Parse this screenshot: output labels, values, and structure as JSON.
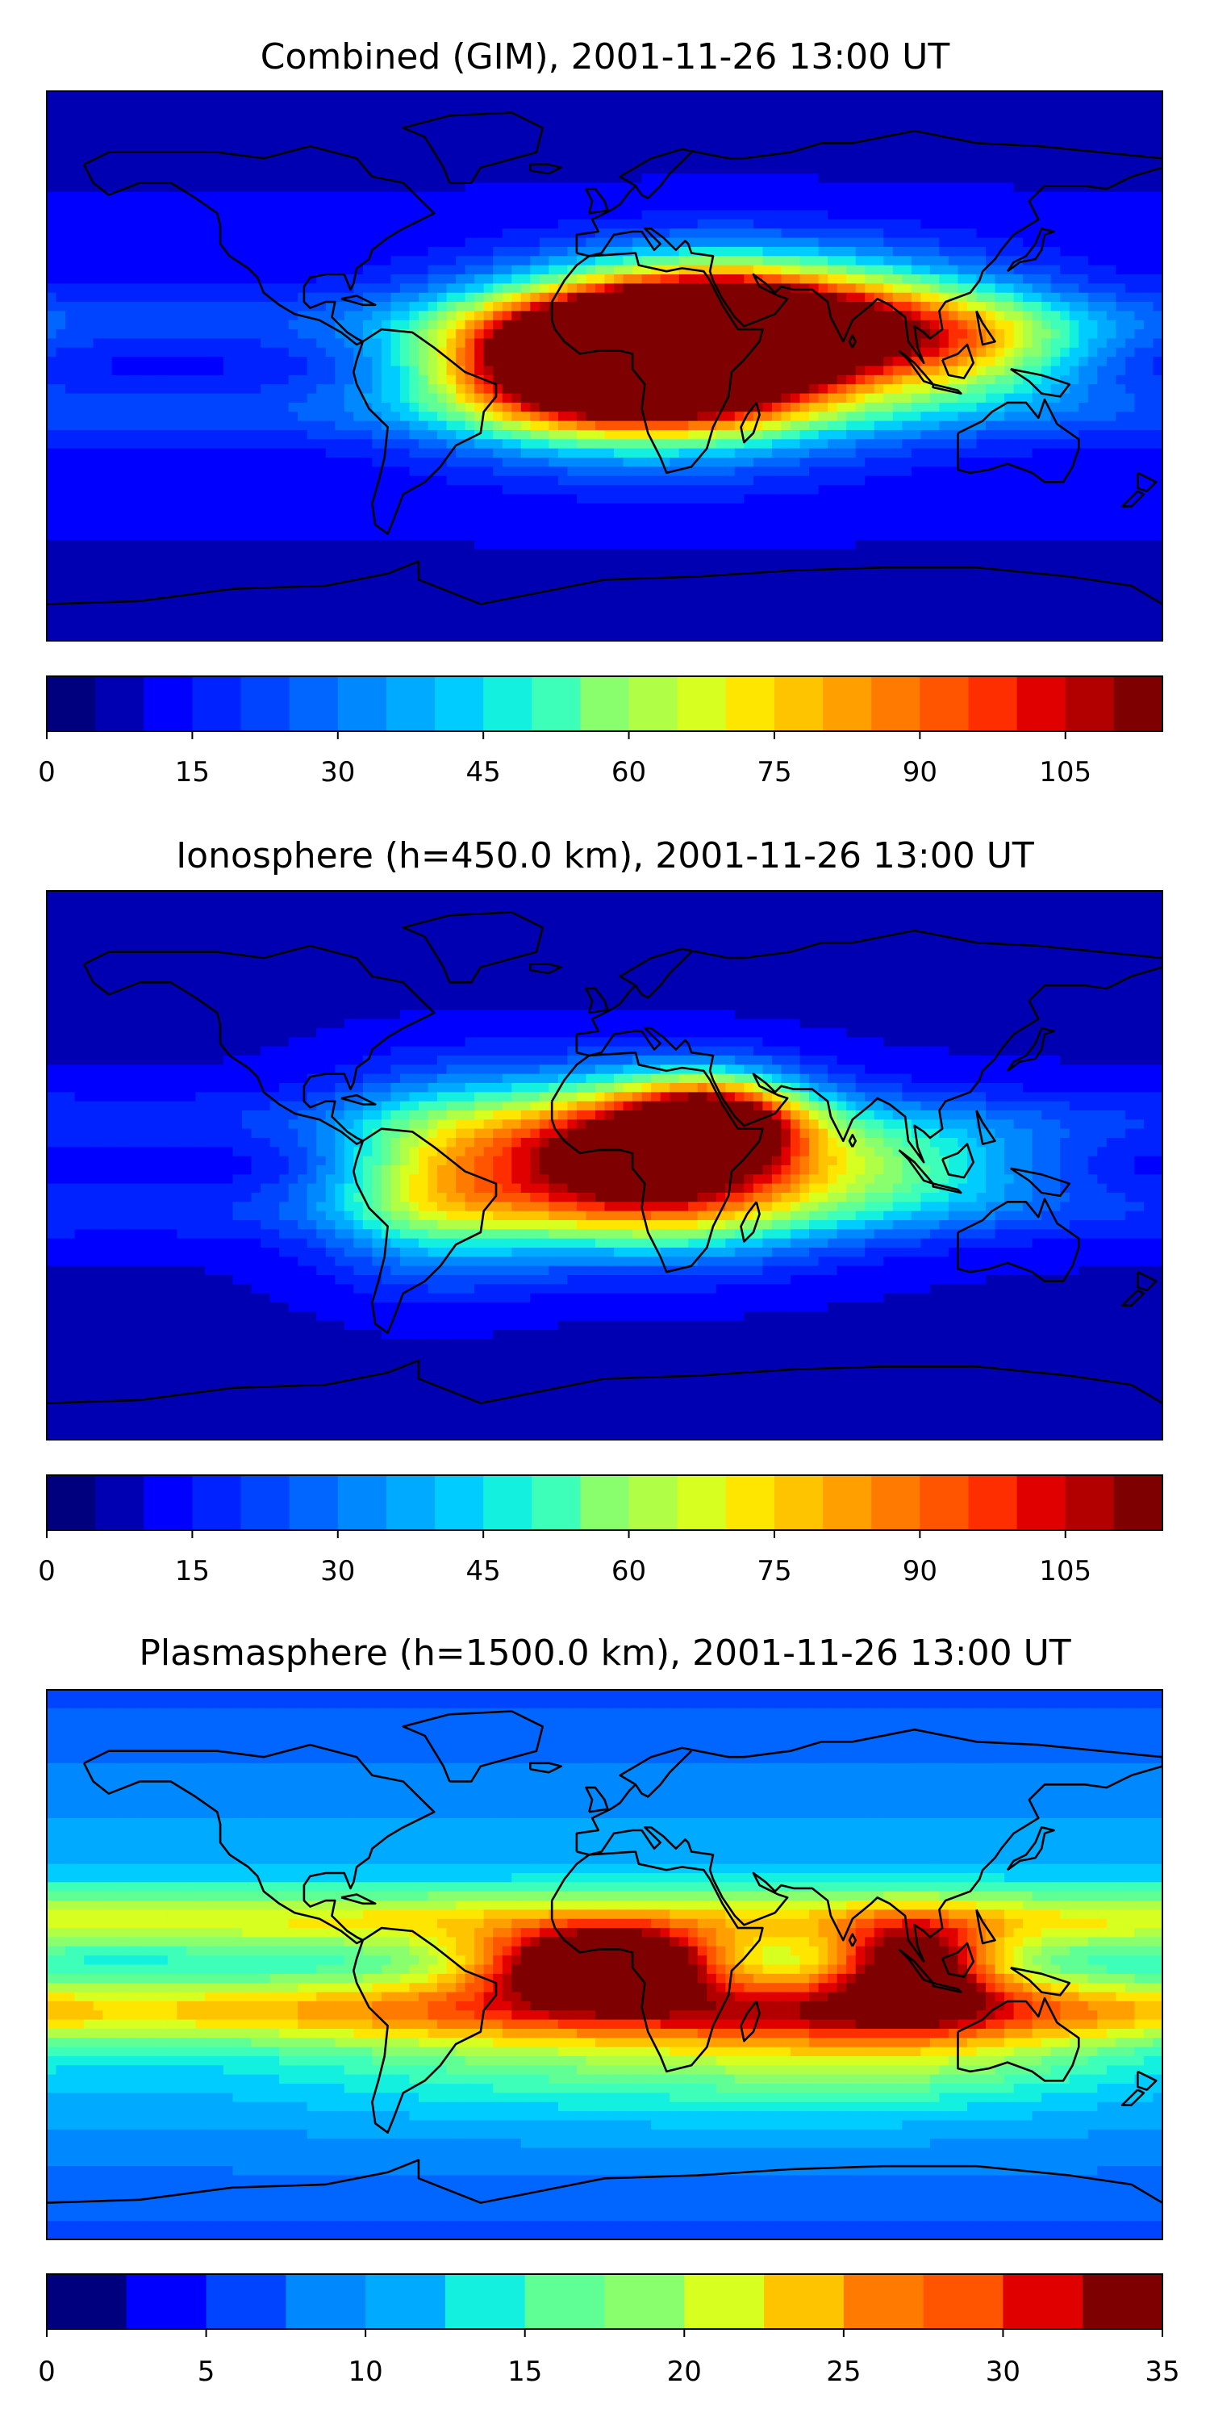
{
  "chart_data": [
    {
      "type": "heatmap",
      "title": "Combined (GIM), 2001-11-26 13:00 UT",
      "xlabel": "",
      "ylabel": "",
      "colorbar": {
        "ticks": [
          "0",
          "15",
          "30",
          "45",
          "60",
          "75",
          "90",
          "105"
        ],
        "levels": [
          0,
          5,
          10,
          15,
          20,
          25,
          30,
          35,
          40,
          45,
          50,
          55,
          60,
          65,
          70,
          75,
          80,
          85,
          90,
          95,
          100,
          105,
          110,
          115
        ],
        "range": [
          0,
          115
        ]
      },
      "blobs": [
        {
          "lon": -5,
          "lat": 2,
          "value": 100,
          "wlon": 35,
          "wlat": 14
        },
        {
          "lon": 30,
          "lat": 10,
          "value": 100,
          "wlon": 30,
          "wlat": 14
        },
        {
          "lon": 20,
          "lat": 0,
          "value": 90,
          "wlon": 45,
          "wlat": 18
        },
        {
          "lon": 70,
          "lat": 15,
          "value": 70,
          "wlon": 40,
          "wlat": 14
        },
        {
          "lon": 115,
          "lat": 5,
          "value": 55,
          "wlon": 30,
          "wlat": 12
        }
      ],
      "base_value": 12
    },
    {
      "type": "heatmap",
      "title": "Ionosphere  (h=450.0 km), 2001-11-26 13:00 UT",
      "xlabel": "",
      "ylabel": "",
      "colorbar": {
        "ticks": [
          "0",
          "15",
          "30",
          "45",
          "60",
          "75",
          "90",
          "105"
        ],
        "levels": [
          0,
          5,
          10,
          15,
          20,
          25,
          30,
          35,
          40,
          45,
          50,
          55,
          60,
          65,
          70,
          75,
          80,
          85,
          90,
          95,
          100,
          105,
          110,
          115
        ],
        "range": [
          0,
          115
        ]
      },
      "blobs": [
        {
          "lon": 5,
          "lat": 5,
          "value": 75,
          "wlon": 35,
          "wlat": 16
        },
        {
          "lon": 35,
          "lat": 15,
          "value": 85,
          "wlon": 20,
          "wlat": 10
        },
        {
          "lon": 20,
          "lat": -5,
          "value": 70,
          "wlon": 40,
          "wlat": 16
        },
        {
          "lon": -55,
          "lat": -5,
          "value": 55,
          "wlon": 25,
          "wlat": 20
        },
        {
          "lon": 95,
          "lat": 0,
          "value": 45,
          "wlon": 35,
          "wlat": 12
        }
      ],
      "base_value": 10
    },
    {
      "type": "heatmap",
      "title": "Plasmasphere (h=1500.0 km), 2001-11-26 13:00 UT",
      "xlabel": "",
      "ylabel": "",
      "colorbar": {
        "ticks": [
          "0",
          "5",
          "10",
          "15",
          "20",
          "25",
          "30",
          "35"
        ],
        "levels": [
          0,
          2.5,
          5,
          7.5,
          10,
          12.5,
          15,
          17.5,
          20,
          22.5,
          25,
          27.5,
          30,
          32.5,
          35
        ],
        "range": [
          0,
          35
        ]
      },
      "blobs": [
        {
          "lon": -10,
          "lat": 0,
          "value": 30,
          "wlon": 25,
          "wlat": 8
        },
        {
          "lon": 10,
          "lat": 0,
          "value": 27,
          "wlon": 20,
          "wlat": 8
        },
        {
          "lon": 100,
          "lat": 0,
          "value": 32,
          "wlon": 18,
          "wlat": 10
        },
        {
          "lon": 0,
          "lat": -20,
          "value": 20,
          "wlon": 80,
          "wlat": 18
        },
        {
          "lon": 100,
          "lat": -20,
          "value": 20,
          "wlon": 50,
          "wlat": 16
        }
      ],
      "base_value": 12
    }
  ],
  "colors": {
    "jet": [
      "#00007f",
      "#0000b2",
      "#0000ff",
      "#0022ff",
      "#0044ff",
      "#0066ff",
      "#0088ff",
      "#00aaff",
      "#00ccff",
      "#14f0e0",
      "#3dffba",
      "#60ff96",
      "#8aff6d",
      "#b0ff46",
      "#d7ff20",
      "#ffe600",
      "#ffc400",
      "#ff9f00",
      "#ff7a00",
      "#ff5500",
      "#ff2e00",
      "#e00000",
      "#b20000",
      "#7f0000"
    ],
    "coast": "#000000"
  }
}
